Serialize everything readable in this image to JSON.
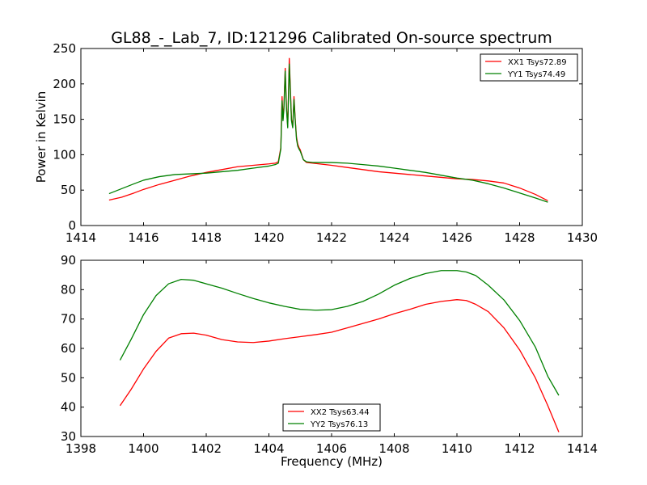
{
  "figure": {
    "title": "GL88_-_Lab_7, ID:121296 Calibrated On-source spectrum"
  },
  "colors": {
    "red": "#ff0000",
    "green": "#008000",
    "axes": "#000000",
    "background": "#ffffff"
  },
  "chart_data": [
    {
      "type": "line",
      "title": "GL88_-_Lab_7, ID:121296 Calibrated On-source spectrum",
      "xlabel": "",
      "ylabel": "Power in Kelvin",
      "xlim": [
        1414,
        1430
      ],
      "ylim": [
        0,
        250
      ],
      "xticks": [
        1414,
        1416,
        1418,
        1420,
        1422,
        1424,
        1426,
        1428,
        1430
      ],
      "yticks": [
        0,
        50,
        100,
        150,
        200,
        250
      ],
      "grid": false,
      "legend": "top-right",
      "series": [
        {
          "name": "XX1 Tsys72.89",
          "color": "#ff0000",
          "x": [
            1414.9,
            1415.3,
            1415.7,
            1416.0,
            1416.5,
            1417.0,
            1417.5,
            1418.0,
            1418.5,
            1419.0,
            1419.5,
            1420.0,
            1420.2,
            1420.3,
            1420.38,
            1420.42,
            1420.45,
            1420.48,
            1420.52,
            1420.56,
            1420.6,
            1420.65,
            1420.68,
            1420.72,
            1420.76,
            1420.8,
            1420.84,
            1420.88,
            1420.92,
            1420.96,
            1421.0,
            1421.05,
            1421.1,
            1421.2,
            1421.4,
            1421.6,
            1422.0,
            1422.5,
            1423.0,
            1423.5,
            1424.0,
            1424.5,
            1425.0,
            1425.5,
            1426.0,
            1426.5,
            1427.0,
            1427.5,
            1428.0,
            1428.5,
            1428.9
          ],
          "y": [
            36,
            40,
            46,
            51,
            58,
            64,
            70,
            75,
            79,
            83,
            85,
            87,
            88,
            90,
            110,
            182,
            150,
            170,
            222,
            168,
            140,
            236,
            200,
            150,
            140,
            182,
            150,
            125,
            115,
            110,
            107,
            100,
            93,
            89,
            88,
            87,
            85,
            82,
            79,
            76,
            74,
            72,
            70,
            68,
            66,
            65,
            63,
            60,
            53,
            44,
            35
          ]
        },
        {
          "name": "YY1 Tsys74.49",
          "color": "#008000",
          "x": [
            1414.9,
            1415.3,
            1415.7,
            1416.0,
            1416.5,
            1417.0,
            1417.5,
            1418.0,
            1418.5,
            1419.0,
            1419.5,
            1420.0,
            1420.2,
            1420.3,
            1420.38,
            1420.42,
            1420.45,
            1420.48,
            1420.52,
            1420.56,
            1420.6,
            1420.65,
            1420.68,
            1420.72,
            1420.76,
            1420.8,
            1420.84,
            1420.88,
            1420.92,
            1420.96,
            1421.0,
            1421.05,
            1421.1,
            1421.2,
            1421.4,
            1421.6,
            1422.0,
            1422.5,
            1423.0,
            1423.5,
            1424.0,
            1424.5,
            1425.0,
            1425.5,
            1426.0,
            1426.5,
            1427.0,
            1427.5,
            1428.0,
            1428.5,
            1428.9
          ],
          "y": [
            45,
            52,
            59,
            64,
            69,
            72,
            73,
            74,
            76,
            78,
            81,
            84,
            86,
            88,
            108,
            176,
            148,
            165,
            218,
            165,
            138,
            228,
            195,
            148,
            138,
            178,
            148,
            122,
            112,
            108,
            105,
            99,
            93,
            90,
            89,
            89,
            89,
            88,
            86,
            84,
            81,
            78,
            75,
            71,
            67,
            64,
            59,
            53,
            46,
            39,
            33
          ]
        }
      ]
    },
    {
      "type": "line",
      "title": "",
      "xlabel": "Frequency (MHz)",
      "ylabel": "",
      "xlim": [
        1398,
        1414
      ],
      "ylim": [
        30,
        90
      ],
      "xticks": [
        1398,
        1400,
        1402,
        1404,
        1406,
        1408,
        1410,
        1412,
        1414
      ],
      "yticks": [
        30,
        40,
        50,
        60,
        70,
        80,
        90
      ],
      "grid": false,
      "legend": "lower-center",
      "series": [
        {
          "name": "XX2 Tsys63.44",
          "color": "#ff0000",
          "x": [
            1399.25,
            1399.6,
            1400.0,
            1400.4,
            1400.8,
            1401.2,
            1401.6,
            1402.0,
            1402.5,
            1403.0,
            1403.5,
            1404.0,
            1404.5,
            1405.0,
            1405.5,
            1406.0,
            1406.5,
            1407.0,
            1407.5,
            1408.0,
            1408.5,
            1409.0,
            1409.5,
            1410.0,
            1410.3,
            1410.6,
            1411.0,
            1411.5,
            1412.0,
            1412.5,
            1412.9,
            1413.25
          ],
          "y": [
            40.5,
            46,
            53,
            59,
            63.5,
            65,
            65.2,
            64.5,
            63,
            62.2,
            62,
            62.5,
            63.3,
            64,
            64.7,
            65.5,
            67,
            68.5,
            70,
            71.8,
            73.3,
            75,
            76,
            76.6,
            76.3,
            75,
            72.5,
            67,
            59.5,
            50,
            40.5,
            31.5
          ]
        },
        {
          "name": "YY2 Tsys76.13",
          "color": "#008000",
          "x": [
            1399.25,
            1399.6,
            1400.0,
            1400.4,
            1400.8,
            1401.2,
            1401.6,
            1402.0,
            1402.5,
            1403.0,
            1403.5,
            1404.0,
            1404.5,
            1405.0,
            1405.5,
            1406.0,
            1406.5,
            1407.0,
            1407.5,
            1408.0,
            1408.5,
            1409.0,
            1409.5,
            1410.0,
            1410.3,
            1410.6,
            1411.0,
            1411.5,
            1412.0,
            1412.5,
            1412.9,
            1413.25
          ],
          "y": [
            56,
            63,
            71.5,
            78,
            82,
            83.5,
            83.2,
            82,
            80.5,
            78.7,
            77,
            75.5,
            74.3,
            73.3,
            73,
            73.2,
            74.3,
            76,
            78.5,
            81.5,
            83.8,
            85.5,
            86.5,
            86.5,
            86,
            84.8,
            81.5,
            76.5,
            69.5,
            60.5,
            50.5,
            44
          ]
        }
      ]
    }
  ]
}
